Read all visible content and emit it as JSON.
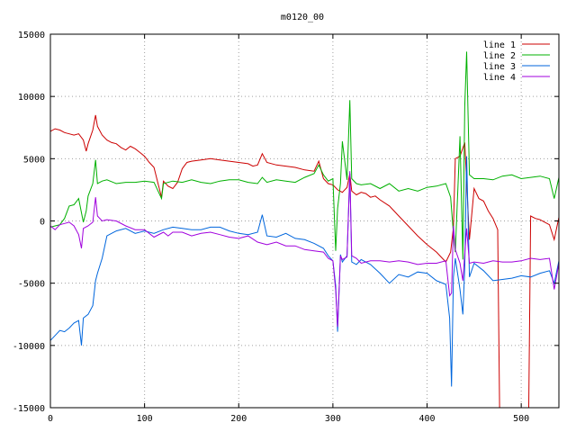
{
  "chart_data": {
    "type": "line",
    "title": "m0120_00",
    "xlabel": "",
    "ylabel": "",
    "xlim": [
      0,
      540
    ],
    "ylim": [
      -15000,
      15000
    ],
    "xticks": [
      0,
      100,
      200,
      300,
      400,
      500
    ],
    "yticks": [
      -15000,
      -10000,
      -5000,
      0,
      5000,
      10000,
      15000
    ],
    "grid": true,
    "legend_position": "top-right",
    "series": [
      {
        "name": "line 1",
        "color": "#cc0000",
        "x": [
          0,
          5,
          10,
          15,
          20,
          25,
          30,
          35,
          38,
          40,
          45,
          48,
          50,
          55,
          60,
          65,
          70,
          75,
          80,
          85,
          90,
          95,
          100,
          105,
          110,
          115,
          118,
          120,
          125,
          130,
          135,
          140,
          145,
          150,
          160,
          170,
          180,
          190,
          200,
          210,
          215,
          220,
          225,
          230,
          240,
          250,
          260,
          270,
          280,
          285,
          290,
          295,
          300,
          305,
          310,
          315,
          318,
          320,
          325,
          330,
          335,
          340,
          345,
          350,
          360,
          370,
          380,
          390,
          400,
          410,
          420,
          425,
          428,
          430,
          435,
          440,
          445,
          450,
          455,
          460,
          465,
          470,
          475,
          477,
          480,
          490,
          500,
          505,
          508,
          510,
          515,
          520,
          525,
          530,
          535,
          540
        ],
        "y": [
          7200,
          7400,
          7300,
          7100,
          7000,
          6900,
          7000,
          6500,
          5600,
          6200,
          7300,
          8500,
          7600,
          6900,
          6500,
          6300,
          6200,
          5900,
          5700,
          6000,
          5800,
          5500,
          5200,
          4700,
          4300,
          2800,
          1900,
          3200,
          2800,
          2600,
          3100,
          4200,
          4700,
          4800,
          4900,
          5000,
          4900,
          4800,
          4700,
          4600,
          4400,
          4500,
          5400,
          4700,
          4500,
          4400,
          4300,
          4100,
          4000,
          4800,
          3400,
          3000,
          2900,
          2500,
          2300,
          2700,
          3800,
          2400,
          2100,
          2300,
          2200,
          1900,
          2000,
          1700,
          1200,
          400,
          -400,
          -1200,
          -1900,
          -2500,
          -3300,
          -2500,
          -500,
          5000,
          5200,
          6300,
          -1500,
          2600,
          1800,
          1600,
          800,
          200,
          -700,
          -15000,
          -15000,
          -15000,
          -15000,
          -15000,
          -15000,
          400,
          200,
          100,
          -100,
          -300,
          -1500,
          300
        ]
      },
      {
        "name": "line 2",
        "color": "#00b000",
        "x": [
          0,
          5,
          10,
          15,
          20,
          25,
          30,
          35,
          38,
          40,
          45,
          48,
          50,
          55,
          60,
          70,
          80,
          90,
          100,
          110,
          115,
          118,
          120,
          130,
          140,
          150,
          160,
          170,
          180,
          190,
          200,
          210,
          220,
          225,
          230,
          240,
          250,
          260,
          270,
          280,
          285,
          290,
          295,
          300,
          303,
          305,
          308,
          310,
          315,
          318,
          320,
          325,
          330,
          340,
          350,
          360,
          370,
          380,
          390,
          400,
          410,
          420,
          425,
          428,
          430,
          435,
          438,
          440,
          442,
          445,
          450,
          460,
          470,
          480,
          490,
          500,
          510,
          520,
          530,
          535,
          540
        ],
        "y": [
          -500,
          -400,
          -300,
          200,
          1200,
          1300,
          1800,
          -100,
          800,
          2000,
          3000,
          4900,
          3000,
          3200,
          3300,
          3000,
          3100,
          3100,
          3200,
          3100,
          2300,
          1800,
          3000,
          3200,
          3100,
          3300,
          3100,
          3000,
          3200,
          3300,
          3300,
          3100,
          3000,
          3500,
          3100,
          3300,
          3200,
          3100,
          3500,
          3800,
          4500,
          3700,
          3200,
          3400,
          -2400,
          1000,
          3000,
          6400,
          3300,
          9700,
          3400,
          3000,
          2900,
          3000,
          2600,
          3000,
          2400,
          2600,
          2400,
          2700,
          2800,
          3000,
          1900,
          -1000,
          -2500,
          6800,
          -3100,
          9200,
          13600,
          3700,
          3400,
          3400,
          3300,
          3600,
          3700,
          3400,
          3500,
          3600,
          3400,
          1800,
          3500
        ]
      },
      {
        "name": "line 3",
        "color": "#0066dd",
        "x": [
          0,
          5,
          10,
          15,
          20,
          25,
          30,
          33,
          35,
          40,
          45,
          48,
          50,
          55,
          60,
          70,
          80,
          90,
          100,
          110,
          120,
          130,
          140,
          150,
          160,
          170,
          180,
          190,
          200,
          210,
          220,
          225,
          230,
          240,
          250,
          260,
          270,
          280,
          290,
          295,
          300,
          303,
          305,
          308,
          310,
          315,
          318,
          320,
          325,
          330,
          340,
          350,
          360,
          370,
          380,
          390,
          400,
          410,
          420,
          424,
          426,
          428,
          430,
          435,
          438,
          440,
          442,
          445,
          450,
          460,
          470,
          480,
          490,
          500,
          510,
          520,
          530,
          535,
          540
        ],
        "y": [
          -9600,
          -9200,
          -8800,
          -8900,
          -8600,
          -8200,
          -8000,
          -10000,
          -7800,
          -7500,
          -6800,
          -4800,
          -4200,
          -3000,
          -1200,
          -800,
          -600,
          -1000,
          -800,
          -1000,
          -700,
          -500,
          -600,
          -700,
          -700,
          -500,
          -500,
          -800,
          -1000,
          -1100,
          -900,
          500,
          -1200,
          -1300,
          -1000,
          -1400,
          -1500,
          -1800,
          -2200,
          -2800,
          -3200,
          -5200,
          -8900,
          -2700,
          -3300,
          -2800,
          3800,
          -3300,
          -3500,
          -3100,
          -3500,
          -4200,
          -5000,
          -4300,
          -4500,
          -4100,
          -4200,
          -4800,
          -5100,
          -7800,
          -13300,
          -4500,
          -3000,
          -5500,
          -7500,
          -3700,
          5200,
          -4500,
          -3400,
          -4000,
          -4800,
          -4700,
          -4600,
          -4400,
          -4500,
          -4200,
          -4000,
          -5000,
          -3200
        ]
      },
      {
        "name": "line 4",
        "color": "#a000dd",
        "x": [
          0,
          5,
          10,
          15,
          20,
          25,
          30,
          33,
          35,
          40,
          45,
          48,
          50,
          55,
          60,
          70,
          80,
          90,
          100,
          110,
          120,
          125,
          130,
          140,
          150,
          160,
          170,
          180,
          190,
          200,
          210,
          220,
          230,
          240,
          250,
          260,
          270,
          280,
          290,
          295,
          300,
          303,
          305,
          308,
          310,
          315,
          318,
          320,
          325,
          330,
          340,
          350,
          360,
          370,
          380,
          390,
          400,
          410,
          420,
          424,
          426,
          428,
          430,
          435,
          438,
          440,
          442,
          445,
          450,
          460,
          470,
          480,
          490,
          500,
          510,
          520,
          530,
          535,
          540
        ],
        "y": [
          -400,
          -700,
          -300,
          -200,
          -100,
          -400,
          -1100,
          -2200,
          -600,
          -400,
          -100,
          1900,
          400,
          0,
          100,
          0,
          -400,
          -700,
          -700,
          -1300,
          -900,
          -1200,
          -900,
          -900,
          -1200,
          -1000,
          -900,
          -1100,
          -1300,
          -1400,
          -1200,
          -1700,
          -1900,
          -1700,
          -2000,
          -2000,
          -2300,
          -2400,
          -2500,
          -3000,
          -3200,
          -5600,
          -8500,
          -2800,
          -3100,
          -2900,
          4000,
          -2800,
          -3000,
          -3400,
          -3200,
          -3200,
          -3300,
          -3200,
          -3300,
          -3500,
          -3400,
          -3400,
          -3200,
          -6000,
          -5800,
          -400,
          -2300,
          -3400,
          -4800,
          -2600,
          -600,
          -3400,
          -3300,
          -3400,
          -3200,
          -3300,
          -3300,
          -3200,
          -3000,
          -3100,
          -3000,
          -5500,
          -3400
        ]
      }
    ]
  }
}
